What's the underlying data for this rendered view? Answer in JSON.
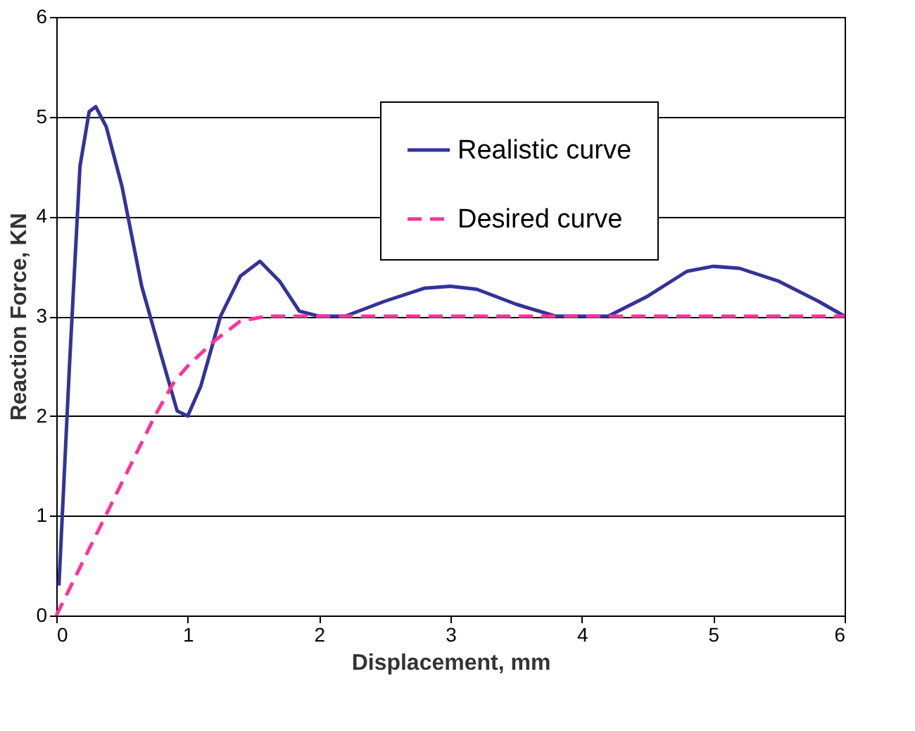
{
  "chart_data": {
    "type": "line",
    "xlabel": "Displacement, mm",
    "ylabel": "Reaction Force, KN",
    "xlim": [
      0,
      6
    ],
    "xticks": [
      0,
      1,
      2,
      3,
      4,
      5,
      6
    ],
    "ylim": [
      0,
      6
    ],
    "yticks": [
      0,
      1,
      2,
      3,
      4,
      5,
      6
    ],
    "grid": "y",
    "legend": "top right",
    "marker": "none",
    "series": [
      {
        "name": "Realistic curve",
        "color": "#333399",
        "line_style": "solid",
        "x": [
          0.02,
          0.1,
          0.18,
          0.25,
          0.3,
          0.38,
          0.5,
          0.65,
          0.8,
          0.92,
          1.0,
          1.1,
          1.25,
          1.4,
          1.55,
          1.7,
          1.85,
          2.0,
          2.2,
          2.5,
          2.8,
          3.0,
          3.2,
          3.5,
          3.8,
          4.2,
          4.5,
          4.8,
          5.0,
          5.2,
          5.5,
          5.8,
          6.0
        ],
        "values": [
          0.3,
          2.5,
          4.5,
          5.05,
          5.1,
          4.9,
          4.3,
          3.3,
          2.6,
          2.05,
          2.0,
          2.3,
          3.0,
          3.4,
          3.55,
          3.35,
          3.05,
          3.0,
          3.0,
          3.15,
          3.28,
          3.3,
          3.27,
          3.12,
          3.0,
          3.0,
          3.2,
          3.45,
          3.5,
          3.48,
          3.35,
          3.15,
          3.0
        ]
      },
      {
        "name": "Desired curve",
        "color": "#ff3399",
        "line_style": "dashed",
        "x": [
          0,
          0.3,
          0.6,
          0.75,
          0.9,
          1.0,
          1.2,
          1.4,
          1.6,
          6.0
        ],
        "values": [
          0,
          0.8,
          1.6,
          2.0,
          2.35,
          2.5,
          2.75,
          2.95,
          3.0,
          3.0
        ]
      }
    ]
  }
}
